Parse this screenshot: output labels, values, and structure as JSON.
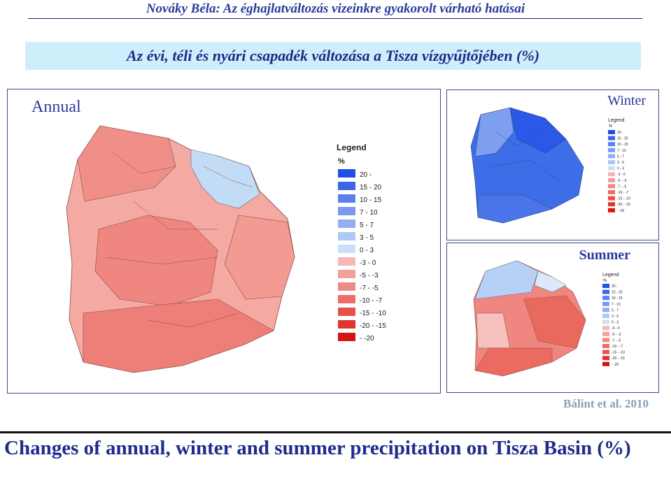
{
  "header": {
    "author": "Nováky Béla: Az éghajlatváltozás vizeinkre gyakorolt várható hatásai",
    "banner": "Az évi, téli és nyári csapadék változása a Tisza vízgyűjtőjében (%)"
  },
  "panels": {
    "annual_title": "Annual",
    "winter_title": "Winter",
    "summer_title": "Summer"
  },
  "legend": {
    "title": "Legend",
    "unit": "%",
    "classes": [
      {
        "label": "20 -",
        "color": "#1f4fe8"
      },
      {
        "label": "15 - 20",
        "color": "#3a66ea"
      },
      {
        "label": "10 - 15",
        "color": "#5a80ee"
      },
      {
        "label": "7 - 10",
        "color": "#7b99f0"
      },
      {
        "label": "5 - 7",
        "color": "#94aef3"
      },
      {
        "label": "3 - 5",
        "color": "#b0c8f5"
      },
      {
        "label": "0 - 3",
        "color": "#cbe0f8"
      },
      {
        "label": "-3 - 0",
        "color": "#f5b8b4"
      },
      {
        "label": "-5 - -3",
        "color": "#f3a09b"
      },
      {
        "label": "-7 - -5",
        "color": "#f08a84"
      },
      {
        "label": "-10 - -7",
        "color": "#ec6d66"
      },
      {
        "label": "-15 - -10",
        "color": "#e65249"
      },
      {
        "label": "-20 - -15",
        "color": "#df3530"
      },
      {
        "label": "- -20",
        "color": "#d61212"
      }
    ]
  },
  "credit": "Bálint et al. 2010",
  "caption": "Changes of annual, winter and summer precipitation on Tisza Basin (%)"
}
